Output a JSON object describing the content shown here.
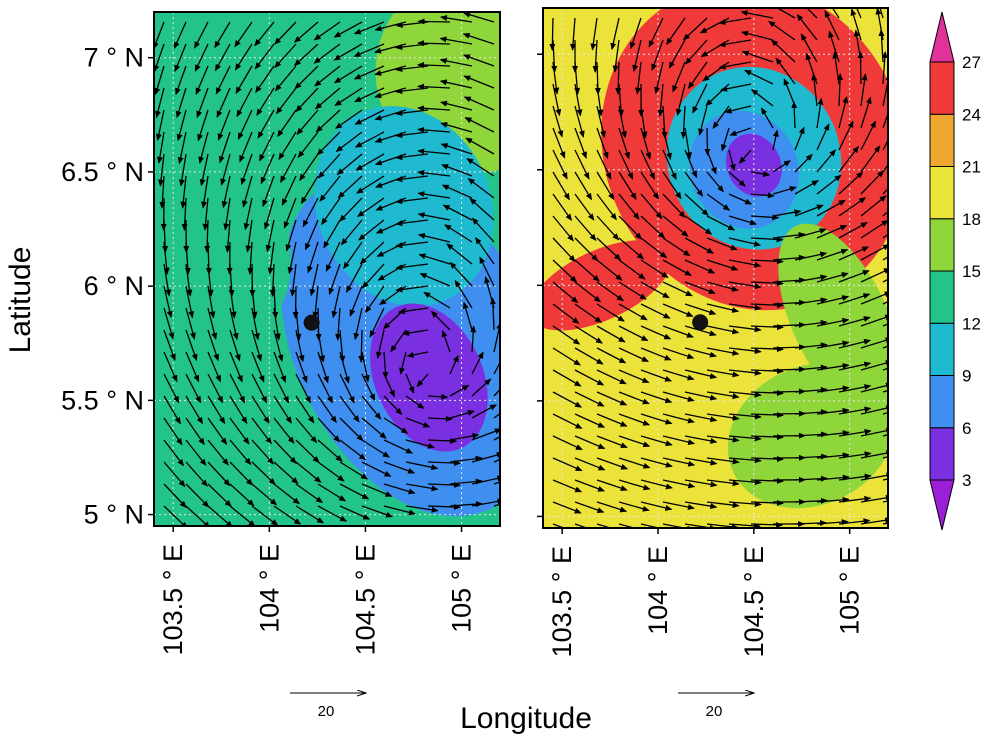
{
  "chart_data": {
    "type": "heatmap",
    "xlabel": "Longitude",
    "ylabel": "Latitude",
    "xlim": [
      103.4,
      105.2
    ],
    "ylim": [
      4.95,
      7.2
    ],
    "x_ticks": [
      103.5,
      104,
      104.5,
      105
    ],
    "x_tick_labels": [
      "103.5 ° E",
      "104 ° E",
      "104.5 ° E",
      "105 ° E"
    ],
    "y_ticks": [
      5,
      5.5,
      6,
      6.5,
      7
    ],
    "y_tick_labels": [
      "5 ° N",
      "5.5 ° N",
      "6 ° N",
      "6.5 ° N",
      "7 ° N"
    ],
    "grid": true,
    "colorbar": {
      "levels": [
        3,
        6,
        9,
        12,
        15,
        18,
        21,
        24,
        27
      ],
      "level_labels": [
        "3",
        "6",
        "9",
        "12",
        "15",
        "18",
        "21",
        "24",
        "27"
      ],
      "colors": [
        "#9b1fd8",
        "#7a2fe0",
        "#3f8ff0",
        "#1fbad0",
        "#22c48a",
        "#8fd63a",
        "#ece33a",
        "#f0a830",
        "#f03a3a",
        "#e0329a"
      ]
    },
    "reference_vector": {
      "value": 20,
      "label": "20"
    },
    "panels": [
      {
        "name": "left",
        "background_value": 13,
        "marker": {
          "lon": 104.22,
          "lat": 5.84
        },
        "vortex": {
          "lon": 104.83,
          "lat": 5.6
        },
        "features": [
          {
            "lon": 104.83,
            "lat": 5.6,
            "rx": 0.28,
            "ry": 0.34,
            "value": 3
          },
          {
            "lon": 104.75,
            "lat": 5.75,
            "rx": 0.62,
            "ry": 0.8,
            "value": 7.5
          },
          {
            "lon": 104.7,
            "lat": 6.35,
            "rx": 0.45,
            "ry": 0.45,
            "value": 10.5
          },
          {
            "lon": 105.1,
            "lat": 6.95,
            "rx": 0.55,
            "ry": 0.45,
            "value": 16.5
          },
          {
            "lon": 103.6,
            "lat": 6.6,
            "rx": 0.35,
            "ry": 0.8,
            "value": 14
          }
        ]
      },
      {
        "name": "right",
        "background_value": 20,
        "marker": {
          "lon": 104.22,
          "lat": 5.84
        },
        "vortex": {
          "lon": 104.5,
          "lat": 6.55
        },
        "features": [
          {
            "lon": 104.5,
            "lat": 6.6,
            "rx": 0.78,
            "ry": 0.72,
            "value": 25
          },
          {
            "lon": 104.5,
            "lat": 6.55,
            "rx": 0.45,
            "ry": 0.4,
            "value": 11
          },
          {
            "lon": 104.5,
            "lat": 6.52,
            "rx": 0.14,
            "ry": 0.14,
            "value": 3
          },
          {
            "lon": 104.45,
            "lat": 6.5,
            "rx": 0.28,
            "ry": 0.26,
            "value": 7
          },
          {
            "lon": 104.8,
            "lat": 5.35,
            "rx": 0.45,
            "ry": 0.3,
            "value": 15
          },
          {
            "lon": 103.7,
            "lat": 6.0,
            "rx": 0.4,
            "ry": 0.15,
            "value": 25
          },
          {
            "lon": 104.95,
            "lat": 5.85,
            "rx": 0.25,
            "ry": 0.45,
            "value": 16.5
          }
        ]
      }
    ]
  }
}
